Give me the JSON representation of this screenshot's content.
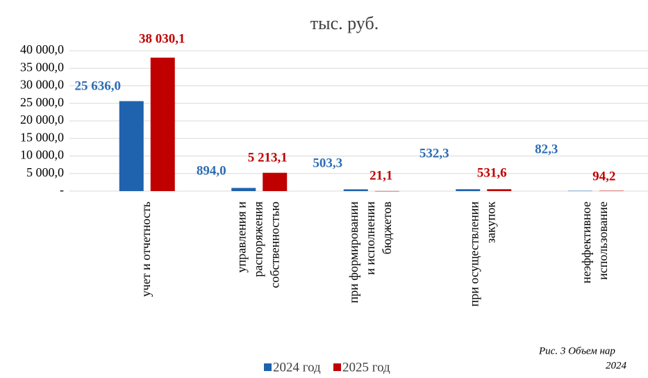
{
  "chart_data": {
    "type": "bar",
    "title": "тыс. руб.",
    "categories": [
      [
        "учет и отчетность"
      ],
      [
        "управления и",
        "распоряжения",
        "собственностью"
      ],
      [
        "при формировании",
        "и исполнении",
        "бюджетов"
      ],
      [
        "при осуществлении",
        "закупок"
      ],
      [
        "неэффективное",
        "использование"
      ]
    ],
    "series": [
      {
        "name": "2024 год",
        "color": "#1f62ad",
        "label_color": "#2e6db4",
        "values": [
          25636.0,
          894.0,
          503.3,
          532.3,
          82.3
        ],
        "value_labels": [
          "25 636,0",
          "894,0",
          "503,3",
          "532,3",
          "82,3"
        ]
      },
      {
        "name": "2025 год",
        "color": "#c00000",
        "label_color": "#c00000",
        "values": [
          38030.1,
          5213.1,
          21.1,
          531.6,
          94.2
        ],
        "value_labels": [
          "38 030,1",
          "5 213,1",
          "21,1",
          "531,6",
          "94,2"
        ]
      }
    ],
    "ylim": [
      0,
      40000
    ],
    "yticks": [
      {
        "value": 0,
        "label": "-"
      },
      {
        "value": 5000,
        "label": "5 000,0"
      },
      {
        "value": 10000,
        "label": "10 000,0"
      },
      {
        "value": 15000,
        "label": "15 000,0"
      },
      {
        "value": 20000,
        "label": "20 000,0"
      },
      {
        "value": 25000,
        "label": "25 000,0"
      },
      {
        "value": 30000,
        "label": "30 000,0"
      },
      {
        "value": 35000,
        "label": "35 000,0"
      },
      {
        "value": 40000,
        "label": "40 000,0"
      }
    ],
    "grid": true,
    "legend": "bottom",
    "annotations": [
      "Рис. 3 Объем нар",
      "2024"
    ]
  }
}
